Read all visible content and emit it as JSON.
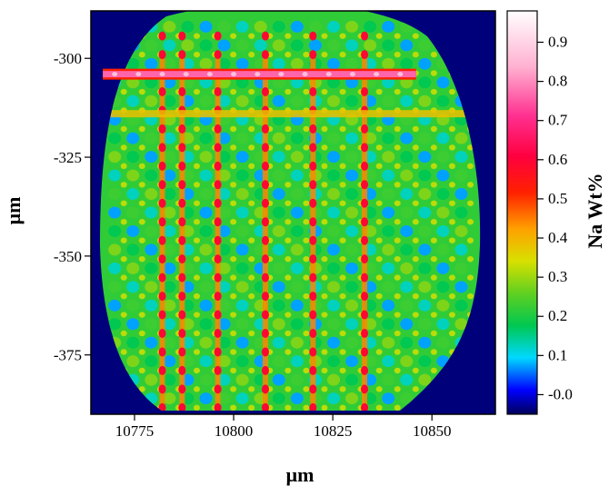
{
  "chart_data": {
    "type": "heatmap",
    "title": "",
    "xlabel": "µm",
    "ylabel": "µm",
    "xlim": [
      10764,
      10866
    ],
    "ylim": [
      -390,
      -288
    ],
    "x_ticks": [
      10775,
      10800,
      10825,
      10850
    ],
    "y_ticks": [
      -300,
      -325,
      -350,
      -375
    ],
    "x_tick_labels": [
      "10775",
      "10800",
      "10825",
      "10850"
    ],
    "y_tick_labels": [
      "-300",
      "-325",
      "-350",
      "-375"
    ],
    "colorbar": {
      "label": "Na Wt%",
      "range": [
        -0.05,
        0.98
      ],
      "ticks": [
        -0.0,
        0.1,
        0.2,
        0.3,
        0.4,
        0.5,
        0.6,
        0.7,
        0.8,
        0.9
      ],
      "tick_labels": [
        "-0.0",
        "0.1",
        "0.2",
        "0.3",
        "0.4",
        "0.5",
        "0.6",
        "0.7",
        "0.8",
        "0.9"
      ],
      "colormap": "rainbow (dark blue → blue → cyan → green → yellow → red → magenta → white)"
    },
    "feature": {
      "region": "roughly circular sample area on dark-blue background",
      "pattern": "regular grid of green/cyan spots (~0.1–0.3 wt%) with higher-Na yellow/red lines",
      "horizontal_high_line_y": -304,
      "horizontal_high_line_value": 0.75,
      "vertical_high_lines_x": [
        10782,
        10787,
        10796,
        10808,
        10820,
        10833
      ],
      "background_value": 0.0
    },
    "grid": false
  }
}
